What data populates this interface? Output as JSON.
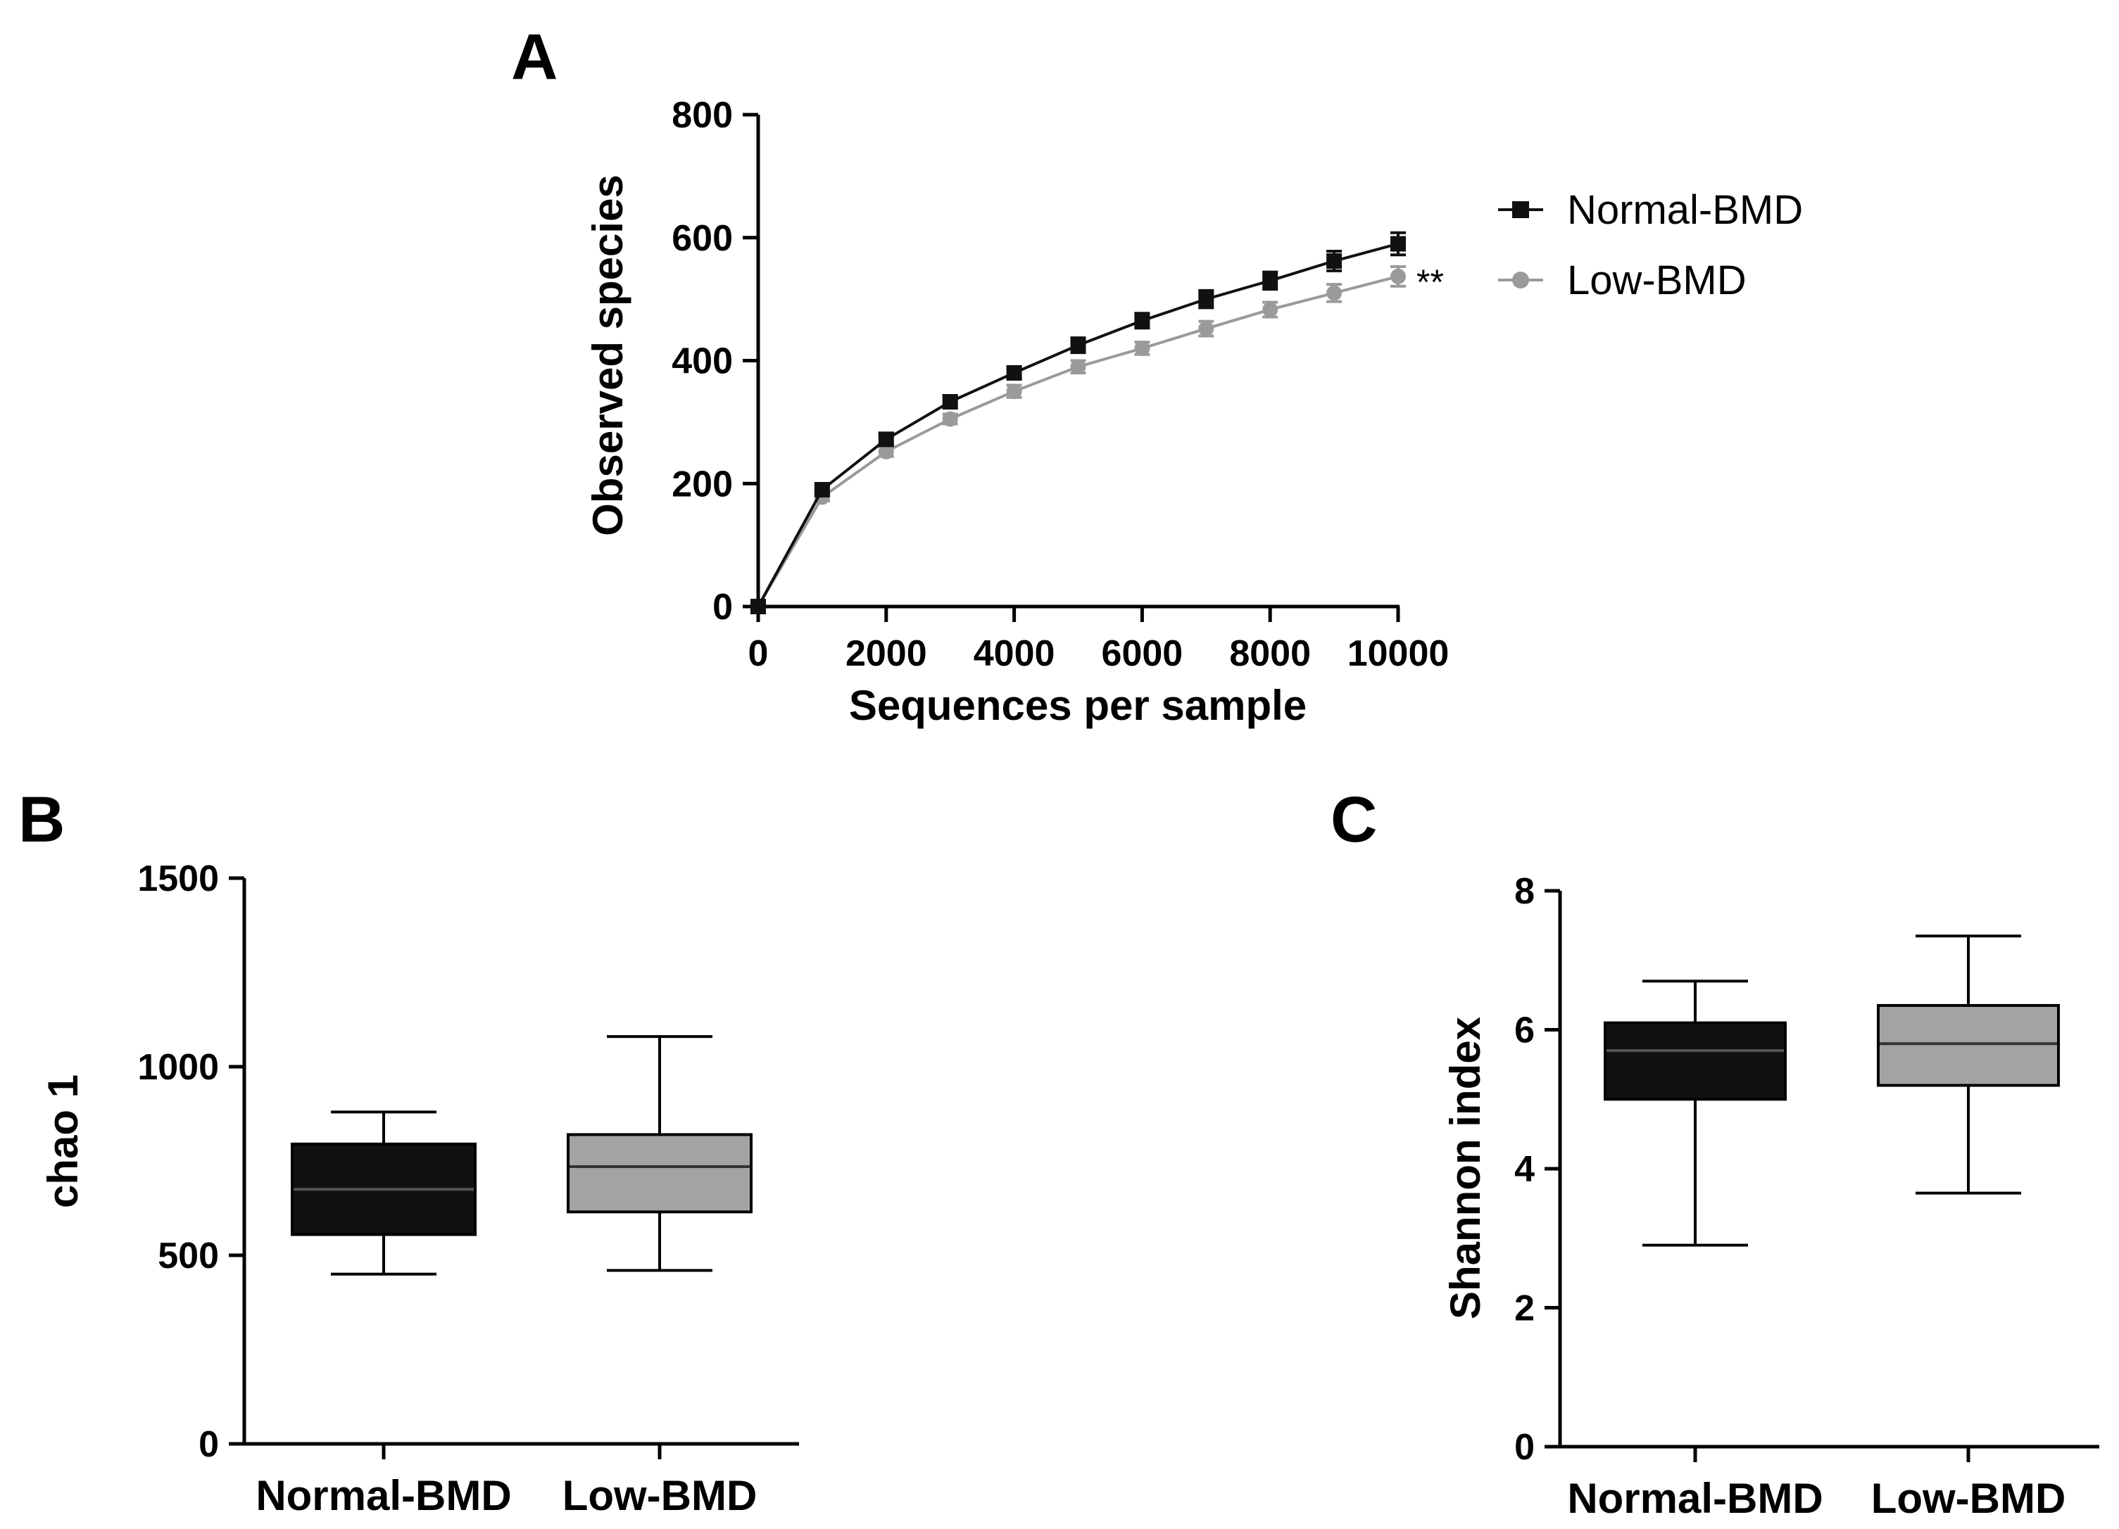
{
  "colors": {
    "normal": "#111111",
    "low": "#9a9a9a",
    "low_box": "#a3a3a3",
    "axis": "#000000",
    "median_normal": "#555555",
    "median_low": "#333333"
  },
  "chart_data": [
    {
      "panel": "A",
      "type": "line",
      "xlabel": "Sequences per sample",
      "ylabel": "Observed species",
      "xlim": [
        0,
        10000
      ],
      "ylim": [
        0,
        800
      ],
      "x_ticks": [
        0,
        2000,
        4000,
        6000,
        8000,
        10000
      ],
      "y_ticks": [
        0,
        200,
        400,
        600,
        800
      ],
      "x": [
        0,
        1000,
        2000,
        3000,
        4000,
        5000,
        6000,
        7000,
        8000,
        9000,
        10000
      ],
      "series": [
        {
          "name": "Normal-BMD",
          "marker": "square",
          "values": [
            0,
            190,
            272,
            333,
            380,
            425,
            465,
            500,
            530,
            562,
            590
          ],
          "error": [
            3,
            8,
            10,
            10,
            10,
            12,
            12,
            14,
            14,
            16,
            18
          ]
        },
        {
          "name": "Low-BMD",
          "marker": "circle",
          "values": [
            0,
            178,
            252,
            305,
            350,
            390,
            420,
            452,
            483,
            510,
            537
          ],
          "error": [
            3,
            6,
            8,
            8,
            10,
            10,
            10,
            12,
            12,
            14,
            16
          ]
        }
      ],
      "annotation": "**",
      "legend_position": "right"
    },
    {
      "panel": "B",
      "type": "boxplot",
      "ylabel": "chao 1",
      "ylim": [
        0,
        1500
      ],
      "y_ticks": [
        0,
        500,
        1000,
        1500
      ],
      "categories": [
        "Normal-BMD",
        "Low-BMD"
      ],
      "boxes": [
        {
          "name": "Normal-BMD",
          "min": 450,
          "q1": 555,
          "median": 675,
          "q3": 795,
          "max": 880
        },
        {
          "name": "Low-BMD",
          "min": 460,
          "q1": 615,
          "median": 735,
          "q3": 820,
          "max": 1080
        }
      ]
    },
    {
      "panel": "C",
      "type": "boxplot",
      "ylabel": "Shannon index",
      "ylim": [
        0,
        8
      ],
      "y_ticks": [
        0,
        2,
        4,
        6,
        8
      ],
      "categories": [
        "Normal-BMD",
        "Low-BMD"
      ],
      "boxes": [
        {
          "name": "Normal-BMD",
          "min": 2.9,
          "q1": 5.0,
          "median": 5.7,
          "q3": 6.1,
          "max": 6.7
        },
        {
          "name": "Low-BMD",
          "min": 3.65,
          "q1": 5.2,
          "median": 5.8,
          "q3": 6.35,
          "max": 7.35
        }
      ]
    }
  ]
}
